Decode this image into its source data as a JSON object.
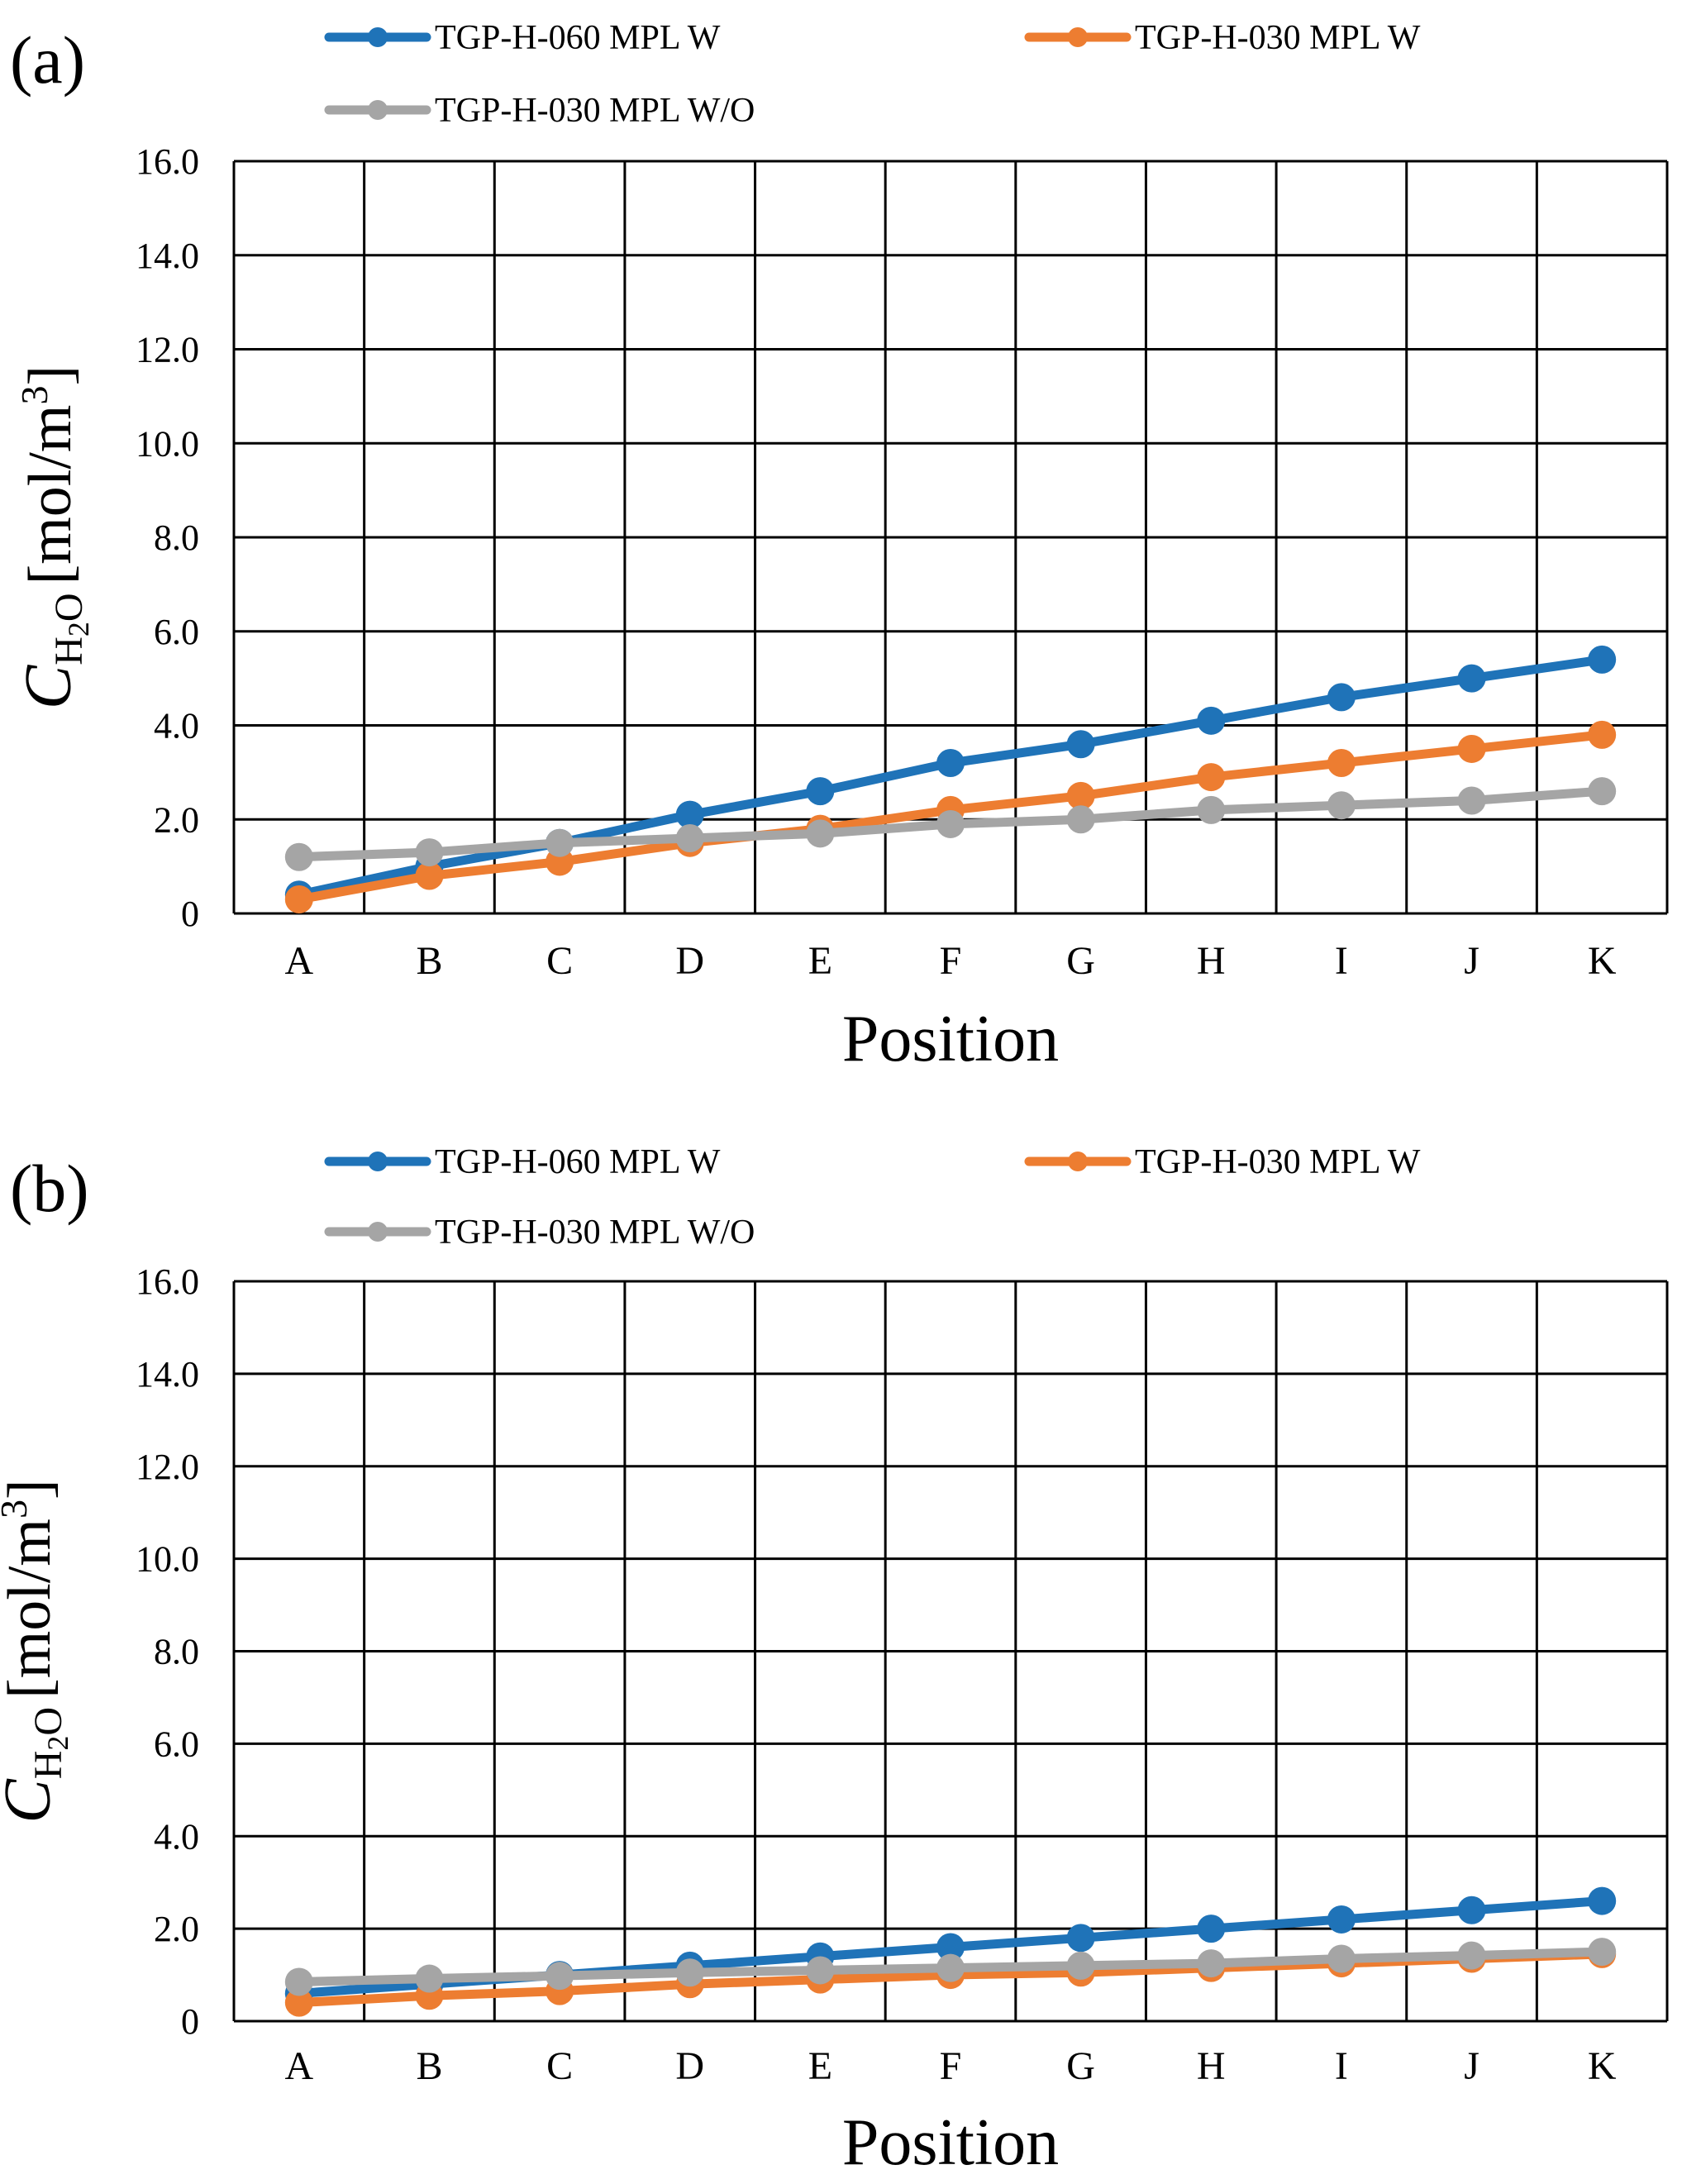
{
  "chart_data": [
    {
      "id": "a",
      "panel_label": "(a)",
      "type": "line",
      "categories": [
        "A",
        "B",
        "C",
        "D",
        "E",
        "F",
        "G",
        "H",
        "I",
        "J",
        "K"
      ],
      "series": [
        {
          "name": "TGP-H-060 MPL W",
          "color": "#1f73b8",
          "values": [
            0.4,
            1.0,
            1.5,
            2.1,
            2.6,
            3.2,
            3.6,
            4.1,
            4.6,
            5.0,
            5.4
          ]
        },
        {
          "name": "TGP-H-030 MPL W",
          "color": "#ed7d31",
          "values": [
            0.3,
            0.8,
            1.1,
            1.5,
            1.8,
            2.2,
            2.5,
            2.9,
            3.2,
            3.5,
            3.8
          ]
        },
        {
          "name": "TGP-H-030 MPL W/O",
          "color": "#a5a5a5",
          "values": [
            1.2,
            1.3,
            1.5,
            1.6,
            1.7,
            1.9,
            2.0,
            2.2,
            2.3,
            2.4,
            2.6
          ]
        }
      ],
      "title": "",
      "xlabel": "Position",
      "ylabel": "C_H2O [mol/m3]",
      "ylabel_parts": {
        "symbol": "C",
        "sub1": "H",
        "sub2": "2",
        "sub3": "O",
        "unit": "[mol/m",
        "sup": "3",
        "close": "]"
      },
      "ylim": [
        0,
        16
      ],
      "yticks": [
        "0",
        "2.0",
        "4.0",
        "6.0",
        "8.0",
        "10.0",
        "12.0",
        "14.0",
        "16.0"
      ],
      "grid": true,
      "legend_position": "top"
    },
    {
      "id": "b",
      "panel_label": "(b)",
      "type": "line",
      "categories": [
        "A",
        "B",
        "C",
        "D",
        "E",
        "F",
        "G",
        "H",
        "I",
        "J",
        "K"
      ],
      "series": [
        {
          "name": "TGP-H-060 MPL W",
          "color": "#1f73b8",
          "values": [
            0.6,
            0.8,
            1.0,
            1.2,
            1.4,
            1.6,
            1.8,
            2.0,
            2.2,
            2.4,
            2.6
          ]
        },
        {
          "name": "TGP-H-030 MPL W",
          "color": "#ed7d31",
          "values": [
            0.4,
            0.55,
            0.65,
            0.8,
            0.9,
            1.0,
            1.05,
            1.15,
            1.25,
            1.35,
            1.45
          ]
        },
        {
          "name": "TGP-H-030 MPL W/O",
          "color": "#a5a5a5",
          "values": [
            0.85,
            0.92,
            0.98,
            1.05,
            1.1,
            1.15,
            1.2,
            1.25,
            1.35,
            1.42,
            1.5
          ]
        }
      ],
      "title": "",
      "xlabel": "Position",
      "ylabel": "C_H2O [mol/m3]",
      "ylabel_parts": {
        "symbol": "C",
        "sub1": "H",
        "sub2": "2",
        "sub3": "O",
        "unit": "[mol/m",
        "sup": "3",
        "close": "]"
      },
      "ylim": [
        0,
        16
      ],
      "yticks": [
        "0",
        "2.0",
        "4.0",
        "6.0",
        "8.0",
        "10.0",
        "12.0",
        "14.0",
        "16.0"
      ],
      "grid": true,
      "legend_position": "top"
    }
  ]
}
